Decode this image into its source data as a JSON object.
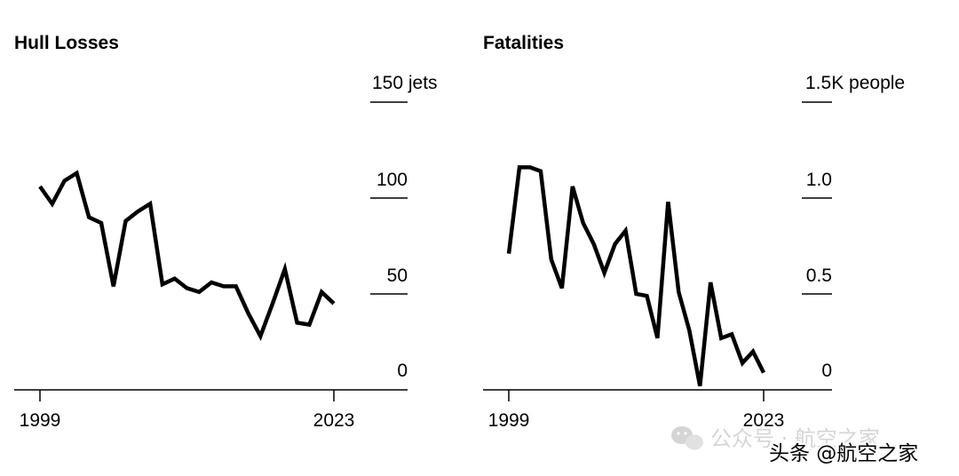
{
  "chart_data": [
    {
      "type": "line",
      "title": "Hull Losses",
      "unit": "jets",
      "x": [
        1999,
        2000,
        2001,
        2002,
        2003,
        2004,
        2005,
        2006,
        2007,
        2008,
        2009,
        2010,
        2011,
        2012,
        2013,
        2014,
        2015,
        2016,
        2017,
        2018,
        2019,
        2020,
        2021,
        2022,
        2023
      ],
      "values": [
        106,
        97,
        109,
        113,
        90,
        87,
        54,
        88,
        93,
        97,
        55,
        58,
        53,
        51,
        56,
        54,
        54,
        40,
        28,
        45,
        63,
        35,
        34,
        51,
        45
      ],
      "ylim": [
        0,
        150
      ],
      "ytick_labels": [
        "0",
        "50",
        "100",
        "150 jets"
      ],
      "xtick_labels": [
        "1999",
        "2023"
      ],
      "xlabel": "",
      "ylabel": ""
    },
    {
      "type": "line",
      "title": "Fatalities",
      "unit": "people",
      "x": [
        1999,
        2000,
        2001,
        2002,
        2003,
        2004,
        2005,
        2006,
        2007,
        2008,
        2009,
        2010,
        2011,
        2012,
        2013,
        2014,
        2015,
        2016,
        2017,
        2018,
        2019,
        2020,
        2021,
        2022,
        2023
      ],
      "values": [
        0.71,
        1.16,
        1.16,
        1.14,
        0.68,
        0.53,
        1.06,
        0.87,
        0.76,
        0.61,
        0.76,
        0.83,
        0.5,
        0.49,
        0.27,
        0.98,
        0.51,
        0.31,
        0.02,
        0.56,
        0.27,
        0.29,
        0.14,
        0.2,
        0.09
      ],
      "ylim": [
        0,
        1.5
      ],
      "ytick_labels": [
        "0",
        "0.5",
        "1.0",
        "1.5K people"
      ],
      "xtick_labels": [
        "1999",
        "2023"
      ],
      "xlabel": "",
      "ylabel": ""
    }
  ],
  "watermark": {
    "wechat_text": "公众号 · 航空之家",
    "toutiao_text": "头条 @航空之家"
  }
}
